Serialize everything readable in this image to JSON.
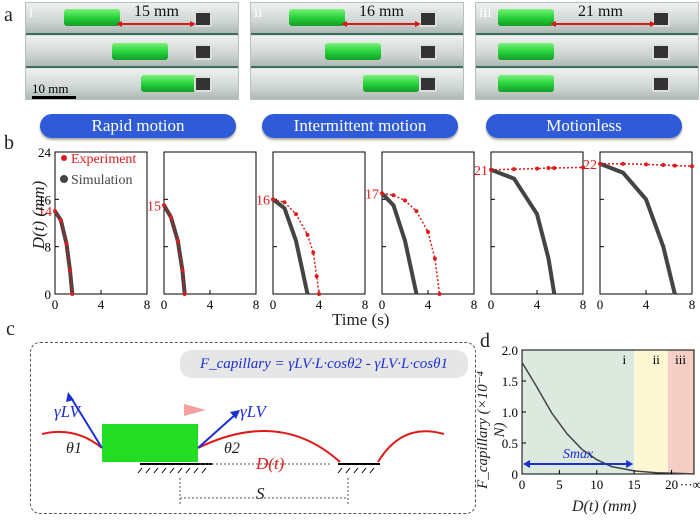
{
  "panel_a": {
    "label": "a",
    "sub": [
      {
        "roman": "i",
        "distance": "15 mm"
      },
      {
        "roman": "ii",
        "distance": "16 mm"
      },
      {
        "roman": "iii",
        "distance": "21 mm"
      }
    ],
    "scalebar": "10 mm"
  },
  "modes": [
    "Rapid motion",
    "Intermittent motion",
    "Motionless"
  ],
  "panel_b": {
    "label": "b",
    "ylabel": "D(t) (mm)",
    "xlabel": "Time (s)",
    "yticks": [
      "0",
      "8",
      "16",
      "24"
    ],
    "xticks": [
      "0",
      "4",
      "8"
    ],
    "legend": {
      "experiment": "Experiment",
      "simulation": "Simulation"
    },
    "start_values": [
      "14",
      "15",
      "16",
      "17",
      "21",
      "22"
    ]
  },
  "panel_c": {
    "label": "c",
    "equation": "F_capillary = γLV·L·cosθ2 - γLV·L·cosθ1",
    "gamma": "γLV",
    "theta1": "θ1",
    "theta2": "θ2",
    "dt": "D(t)",
    "s": "S"
  },
  "panel_d": {
    "label": "d",
    "ylabel": "F_capillary (×10⁻⁴ N)",
    "xlabel": "D(t) (mm)",
    "yticks": [
      "0",
      "0.5",
      "1.0",
      "1.5",
      "2.0"
    ],
    "xticks": [
      "0",
      "5",
      "10",
      "15",
      "20"
    ],
    "x_end": "···∞",
    "regions": [
      "i",
      "ii",
      "iii"
    ],
    "smax": "Smax"
  },
  "chart_data": [
    {
      "type": "line",
      "panel": "b-1",
      "x": [
        0,
        0.5,
        1.0,
        1.3,
        1.5
      ],
      "series": [
        {
          "name": "Experiment",
          "values": [
            14,
            12.5,
            8.5,
            4,
            0
          ]
        },
        {
          "name": "Simulation",
          "values": [
            14,
            12.5,
            8.5,
            4,
            0
          ]
        }
      ],
      "xlim": [
        0,
        8
      ],
      "ylim": [
        0,
        24
      ]
    },
    {
      "type": "line",
      "panel": "b-2",
      "x": [
        0,
        0.6,
        1.2,
        1.6,
        1.8
      ],
      "series": [
        {
          "name": "Experiment",
          "values": [
            15,
            13,
            9,
            4,
            0
          ]
        },
        {
          "name": "Simulation",
          "values": [
            15,
            13,
            9,
            4,
            0
          ]
        }
      ],
      "xlim": [
        0,
        8
      ],
      "ylim": [
        0,
        24
      ]
    },
    {
      "type": "line",
      "panel": "b-3",
      "x": [
        0,
        1,
        2,
        3,
        3.5,
        3.8,
        4
      ],
      "series": [
        {
          "name": "Experiment",
          "values": [
            16,
            15.5,
            13.5,
            10,
            7,
            3,
            0
          ]
        },
        {
          "name": "Simulation",
          "values": [
            16,
            14.5,
            9,
            0,
            null,
            null,
            null
          ]
        }
      ],
      "xlim": [
        0,
        8
      ],
      "ylim": [
        0,
        24
      ]
    },
    {
      "type": "line",
      "panel": "b-4",
      "x": [
        0,
        1,
        2,
        3,
        4,
        4.6,
        5
      ],
      "series": [
        {
          "name": "Experiment",
          "values": [
            17,
            16.7,
            15.8,
            14,
            10.5,
            6,
            0
          ]
        },
        {
          "name": "Simulation",
          "values": [
            17,
            15,
            9,
            0,
            null,
            null,
            null
          ]
        }
      ],
      "xlim": [
        0,
        8
      ],
      "ylim": [
        0,
        24
      ]
    },
    {
      "type": "line",
      "panel": "b-5",
      "x": [
        0,
        2,
        4,
        5,
        5.5,
        8
      ],
      "series": [
        {
          "name": "Experiment",
          "values": [
            21,
            21.1,
            21.2,
            21.3,
            21.3,
            21.4
          ]
        },
        {
          "name": "Simulation",
          "values": [
            21,
            19.5,
            13.5,
            6,
            0,
            null
          ]
        }
      ],
      "xlim": [
        0,
        8
      ],
      "ylim": [
        0,
        24
      ]
    },
    {
      "type": "line",
      "panel": "b-6",
      "x": [
        0,
        2,
        4,
        5.5,
        6.5,
        8
      ],
      "series": [
        {
          "name": "Experiment",
          "values": [
            22,
            22,
            21.9,
            21.8,
            21.7,
            21.6
          ]
        },
        {
          "name": "Simulation",
          "values": [
            22,
            20.5,
            16,
            8,
            0,
            null
          ]
        }
      ],
      "xlim": [
        0,
        8
      ],
      "ylim": [
        0,
        24
      ]
    },
    {
      "type": "line",
      "panel": "d",
      "x": [
        0,
        2,
        4,
        6,
        8,
        10,
        12,
        15,
        18,
        21,
        23
      ],
      "series": [
        {
          "name": "F_capillary",
          "values": [
            1.8,
            1.4,
            0.98,
            0.65,
            0.4,
            0.23,
            0.12,
            0.05,
            0.02,
            0.01,
            0.0
          ]
        }
      ],
      "xlim": [
        0,
        23
      ],
      "ylim": [
        0,
        2.0
      ],
      "regions": [
        {
          "name": "i",
          "x0": 0,
          "x1": 15
        },
        {
          "name": "ii",
          "x0": 15,
          "x1": 19.5
        },
        {
          "name": "iii",
          "x0": 19.5,
          "x1": 23
        }
      ]
    }
  ]
}
